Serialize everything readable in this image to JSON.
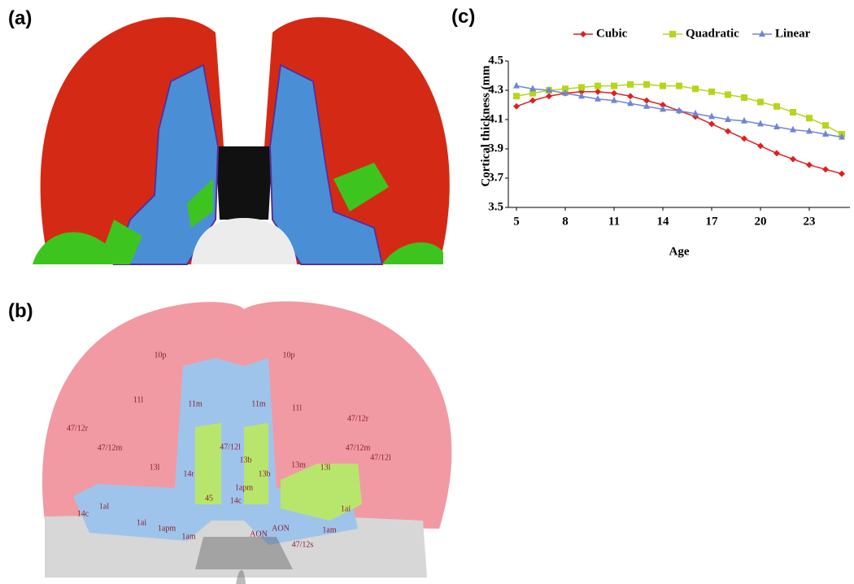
{
  "panels": {
    "a": "(a)",
    "b": "(b)",
    "c": "(c)"
  },
  "regions": [
    "10p",
    "10p",
    "11l",
    "11m",
    "11m",
    "11l",
    "47/12r",
    "47/12r",
    "47/12m",
    "47/12l",
    "13l",
    "14r",
    "13b",
    "13b",
    "13m",
    "13l",
    "47/12m",
    "47/12l",
    "45",
    "14c",
    "14c",
    "1al",
    "1ai",
    "1ai",
    "1apm",
    "1am",
    "AON",
    "AON",
    "1am",
    "47/12s",
    "1apm"
  ],
  "chart_data": {
    "type": "line",
    "x_label": "Age",
    "y_label": "Cortical thickness (mm",
    "x": [
      5,
      6,
      7,
      8,
      9,
      10,
      11,
      12,
      13,
      14,
      15,
      16,
      17,
      18,
      19,
      20,
      21,
      22,
      23,
      24,
      25
    ],
    "xlim": [
      4.5,
      25.5
    ],
    "xticks": [
      5,
      8,
      11,
      14,
      17,
      20,
      23
    ],
    "ylim": [
      3.5,
      4.5
    ],
    "yticks": [
      3.5,
      3.7,
      3.9,
      4.1,
      4.3,
      4.5
    ],
    "legend": "top",
    "series": [
      {
        "name": "Cubic",
        "color": "#e02020",
        "marker": "diamond",
        "values": [
          4.19,
          4.23,
          4.26,
          4.28,
          4.29,
          4.29,
          4.28,
          4.26,
          4.23,
          4.2,
          4.16,
          4.12,
          4.07,
          4.02,
          3.97,
          3.92,
          3.87,
          3.83,
          3.79,
          3.76,
          3.73
        ]
      },
      {
        "name": "Quadratic",
        "color": "#b5d61a",
        "marker": "square",
        "values": [
          4.26,
          4.28,
          4.3,
          4.31,
          4.32,
          4.33,
          4.33,
          4.34,
          4.34,
          4.33,
          4.33,
          4.31,
          4.29,
          4.27,
          4.25,
          4.22,
          4.19,
          4.15,
          4.11,
          4.06,
          4.0
        ]
      },
      {
        "name": "Linear",
        "color": "#6f86d6",
        "marker": "triangle",
        "values": [
          4.33,
          4.31,
          4.3,
          4.28,
          4.26,
          4.24,
          4.23,
          4.21,
          4.19,
          4.17,
          4.16,
          4.14,
          4.12,
          4.1,
          4.09,
          4.07,
          4.05,
          4.03,
          4.02,
          4.0,
          3.98
        ]
      }
    ]
  }
}
